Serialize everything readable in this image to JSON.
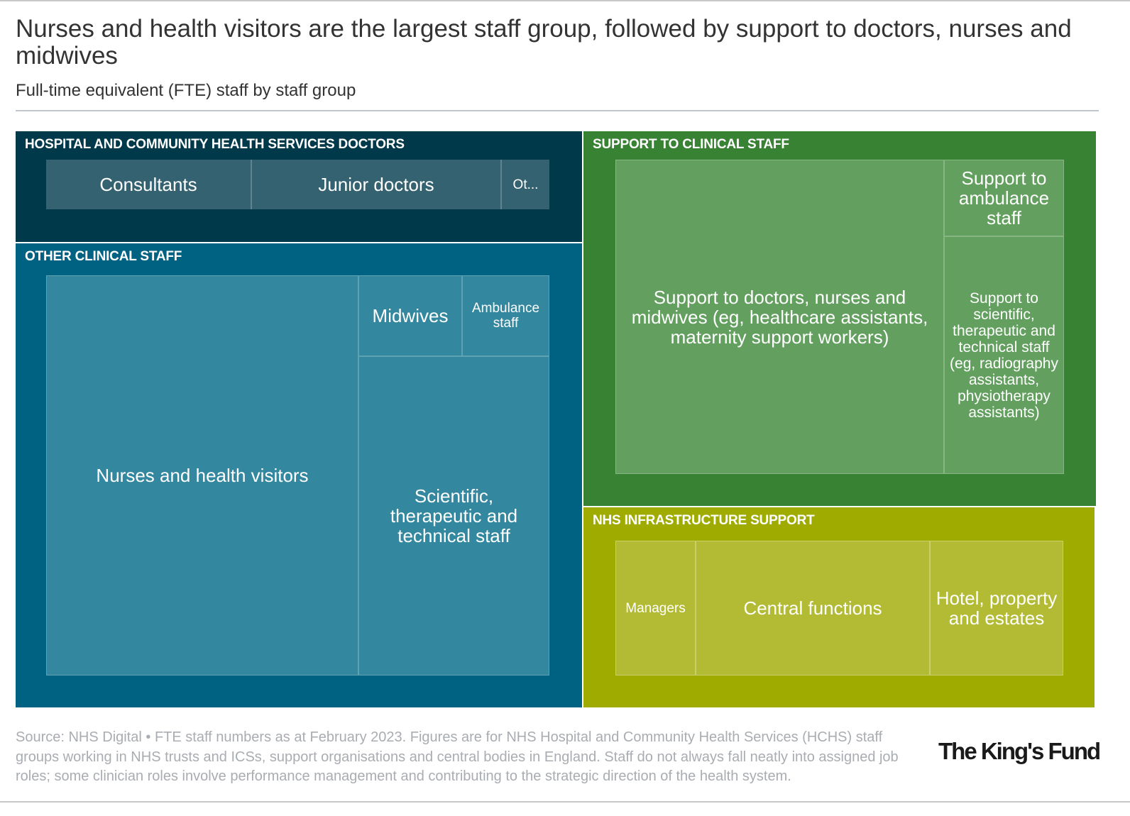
{
  "title": "Nurses and health visitors are the largest staff group, followed by support to doctors, nurses and midwives",
  "subtitle": "Full-time equivalent (FTE) staff by staff group",
  "chart_data": {
    "type": "treemap",
    "unit": "FTE (thousands, approximate, estimated from area)",
    "groups": [
      {
        "name": "HOSPITAL AND COMMUNITY HEALTH SERVICES DOCTORS",
        "color": "#003a4a",
        "tile_color": "#356270",
        "items": [
          {
            "label": "Consultants",
            "value": 51
          },
          {
            "label": "Junior doctors",
            "value": 62
          },
          {
            "label": "Ot...",
            "value": 12
          }
        ]
      },
      {
        "name": "OTHER CLINICAL STAFF",
        "color": "#006282",
        "tile_color": "#33879e",
        "items": [
          {
            "label": "Nurses and health visitors",
            "value": 325
          },
          {
            "label": "Midwives",
            "value": 22
          },
          {
            "label": "Ambulance staff",
            "value": 18
          },
          {
            "label": "Scientific, therapeutic and technical staff",
            "value": 158
          }
        ]
      },
      {
        "name": "SUPPORT TO CLINICAL STAFF",
        "color": "#378233",
        "tile_color": "#63a05f",
        "items": [
          {
            "label": "Support to doctors, nurses and midwives (eg, healthcare assistants, maternity support workers)",
            "value": 280
          },
          {
            "label": "Support to ambulance staff",
            "value": 25
          },
          {
            "label": "Support to scientific, therapeutic and technical staff (eg, radiography assistants, physiotherapy assistants)",
            "value": 77
          }
        ]
      },
      {
        "name": "NHS INFRASTRUCTURE SUPPORT",
        "color": "#a0ab00",
        "tile_color": "#b3bb35",
        "items": [
          {
            "label": "Managers",
            "value": 37
          },
          {
            "label": "Central functions",
            "value": 107
          },
          {
            "label": "Hotel, property and estates",
            "value": 61
          }
        ]
      }
    ]
  },
  "source": "Source: NHS Digital • FTE staff numbers as at February 2023. Figures are for NHS Hospital and Community Health Services (HCHS) staff groups working in NHS trusts and ICSs, support organisations and central bodies in England. Staff do not always fall neatly into assigned job roles; some clinician roles involve performance management and contributing to the strategic direction of the health system.",
  "logo": "The King's Fund"
}
